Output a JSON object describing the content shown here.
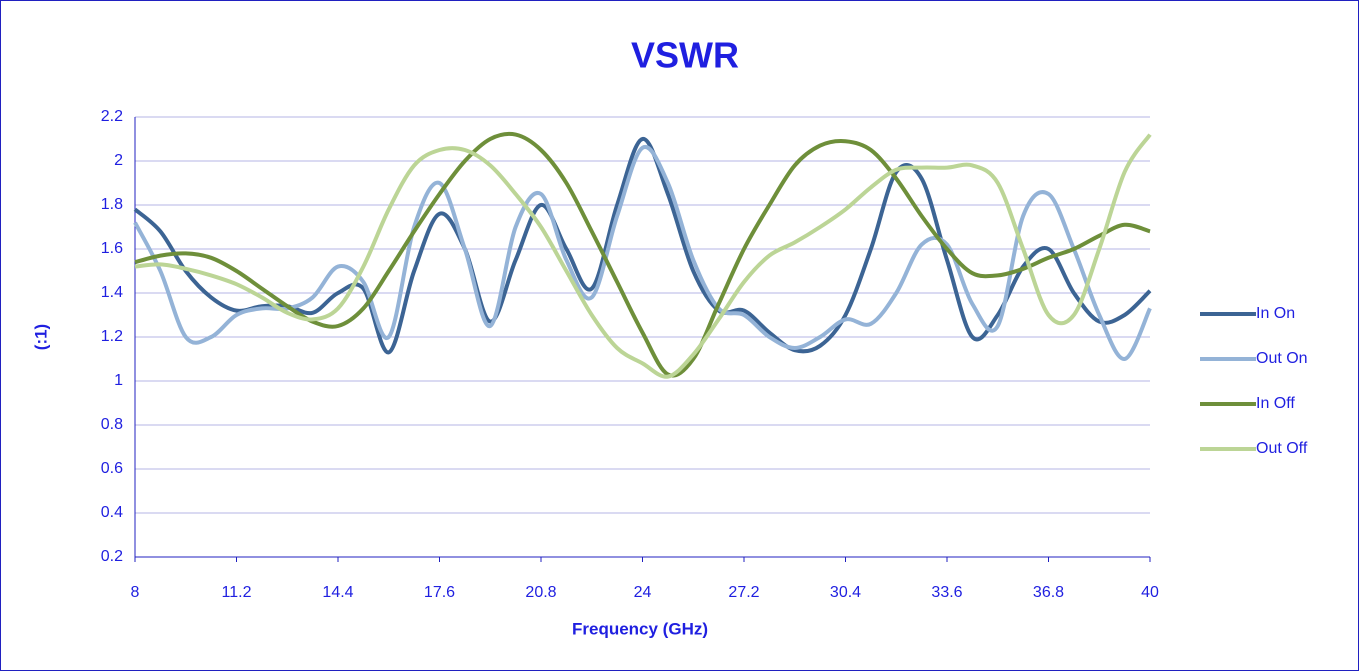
{
  "chart_data": {
    "type": "line",
    "title": "VSWR",
    "x_label": "Frequency (GHz)",
    "y_label": "(:1)",
    "x": [
      8,
      8.8,
      9.6,
      10.4,
      11.2,
      12,
      12.8,
      13.6,
      14.4,
      15.2,
      16,
      16.8,
      17.6,
      18.4,
      19.2,
      20,
      20.8,
      21.6,
      22.4,
      23.2,
      24,
      24.8,
      25.6,
      26.4,
      27.2,
      28,
      28.8,
      29.6,
      30.4,
      31.2,
      32,
      32.8,
      33.6,
      34.4,
      35.2,
      36,
      36.8,
      37.6,
      38.4,
      39.2,
      40
    ],
    "series": [
      {
        "name": "In On",
        "color": "#3c6494",
        "values": [
          1.78,
          1.68,
          1.5,
          1.38,
          1.32,
          1.34,
          1.34,
          1.31,
          1.4,
          1.42,
          1.13,
          1.5,
          1.76,
          1.6,
          1.27,
          1.55,
          1.8,
          1.6,
          1.42,
          1.8,
          2.1,
          1.85,
          1.5,
          1.32,
          1.32,
          1.22,
          1.14,
          1.16,
          1.3,
          1.6,
          1.95,
          1.92,
          1.55,
          1.2,
          1.3,
          1.52,
          1.6,
          1.4,
          1.27,
          1.3,
          1.41
        ]
      },
      {
        "name": "Out On",
        "color": "#94b3d7",
        "values": [
          1.72,
          1.5,
          1.2,
          1.2,
          1.3,
          1.33,
          1.33,
          1.38,
          1.52,
          1.45,
          1.2,
          1.7,
          1.9,
          1.6,
          1.25,
          1.7,
          1.85,
          1.55,
          1.38,
          1.75,
          2.06,
          1.9,
          1.55,
          1.33,
          1.3,
          1.2,
          1.15,
          1.2,
          1.28,
          1.26,
          1.4,
          1.62,
          1.62,
          1.35,
          1.25,
          1.75,
          1.85,
          1.6,
          1.3,
          1.1,
          1.33
        ]
      },
      {
        "name": "In Off",
        "color": "#6e8f3a",
        "values": [
          1.54,
          1.57,
          1.58,
          1.56,
          1.5,
          1.42,
          1.34,
          1.27,
          1.25,
          1.33,
          1.5,
          1.68,
          1.85,
          2.0,
          2.1,
          2.12,
          2.05,
          1.9,
          1.68,
          1.45,
          1.22,
          1.03,
          1.1,
          1.35,
          1.6,
          1.8,
          1.98,
          2.07,
          2.09,
          2.05,
          1.92,
          1.75,
          1.6,
          1.49,
          1.48,
          1.51,
          1.56,
          1.6,
          1.66,
          1.71,
          1.68
        ]
      },
      {
        "name": "Out Off",
        "color": "#bcd596",
        "values": [
          1.52,
          1.53,
          1.51,
          1.48,
          1.44,
          1.38,
          1.31,
          1.28,
          1.33,
          1.52,
          1.78,
          1.98,
          2.05,
          2.05,
          1.98,
          1.85,
          1.7,
          1.5,
          1.3,
          1.15,
          1.08,
          1.02,
          1.12,
          1.28,
          1.45,
          1.57,
          1.63,
          1.7,
          1.78,
          1.88,
          1.96,
          1.97,
          1.97,
          1.98,
          1.9,
          1.6,
          1.3,
          1.3,
          1.6,
          1.95,
          2.12
        ]
      }
    ],
    "xlim": [
      8,
      40
    ],
    "xticks": [
      8,
      11.2,
      14.4,
      17.6,
      20.8,
      24,
      27.2,
      30.4,
      33.6,
      36.8,
      40
    ],
    "ylim": [
      0.2,
      2.2
    ],
    "yticks": [
      0.2,
      0.4,
      0.6,
      0.8,
      1,
      1.2,
      1.4,
      1.6,
      1.8,
      2,
      2.2
    ],
    "grid": true,
    "legend": "right"
  }
}
